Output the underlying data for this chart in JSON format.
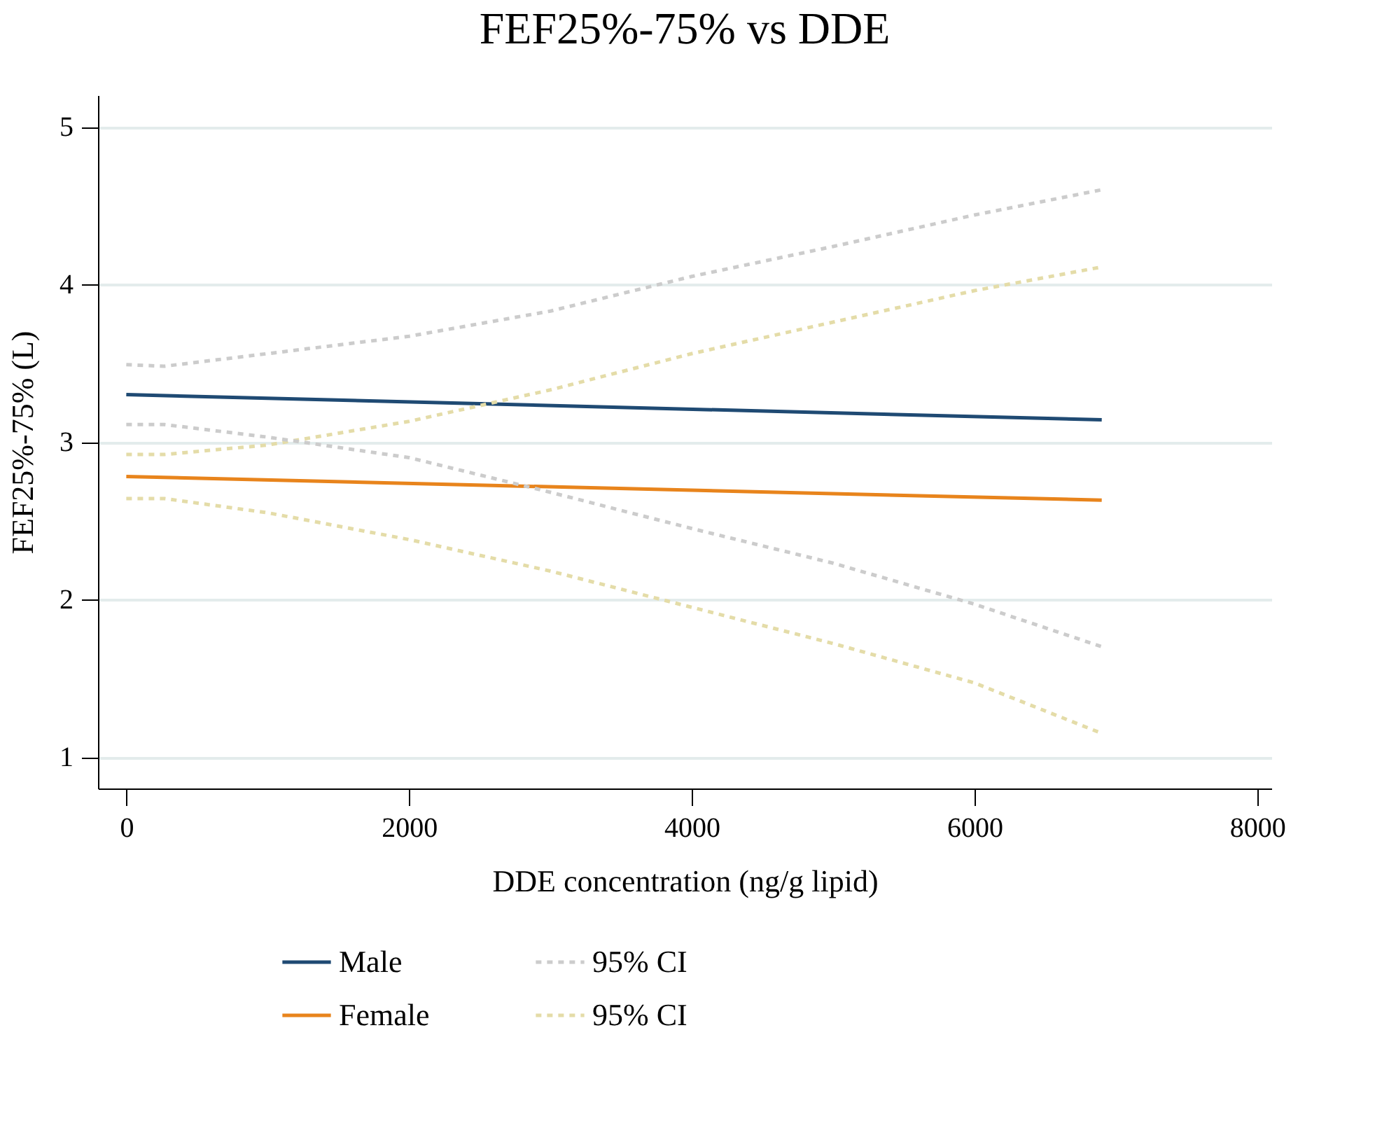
{
  "chart_data": {
    "type": "line",
    "title": "FEF25%-75% vs DDE",
    "xlabel": "DDE concentration (ng/g lipid)",
    "ylabel": "FEF25%-75% (L)",
    "xlim": [
      -200,
      8100
    ],
    "xticks": [
      0,
      2000,
      4000,
      6000,
      8000
    ],
    "ylim": [
      0.8,
      5.2
    ],
    "yticks": [
      1,
      2,
      3,
      4,
      5
    ],
    "grid": "y",
    "legend": "bottom",
    "marker": "none",
    "series": [
      {
        "name": "Male",
        "color": "#1f4a73",
        "line_style": "solid",
        "x": [
          0,
          6900
        ],
        "values": [
          3.3,
          3.14
        ]
      },
      {
        "name": "Female",
        "color": "#e8841c",
        "line_style": "solid",
        "x": [
          0,
          6900
        ],
        "values": [
          2.78,
          2.63
        ]
      },
      {
        "name": "95% CI",
        "color": "#cccccc",
        "line_style": "dashed",
        "x": [
          0,
          270,
          1000,
          2000,
          3000,
          4000,
          5000,
          6000,
          6900
        ],
        "values": [
          3.49,
          3.48,
          3.56,
          3.67,
          3.83,
          4.05,
          4.24,
          4.44,
          4.6
        ]
      },
      {
        "name": "95% CI",
        "color": "#e4dca8",
        "line_style": "dashed",
        "x": [
          0,
          270,
          1000,
          2000,
          3000,
          4000,
          5000,
          6000,
          6900
        ],
        "values": [
          2.92,
          2.92,
          2.98,
          3.13,
          3.33,
          3.56,
          3.76,
          3.96,
          4.11
        ]
      },
      {
        "color": "#cccccc",
        "line_style": "dashed",
        "x": [
          0,
          270,
          1000,
          2000,
          3000,
          4000,
          5000,
          6000,
          6900
        ],
        "values": [
          3.11,
          3.11,
          3.03,
          2.9,
          2.68,
          2.45,
          2.23,
          1.97,
          1.7
        ]
      },
      {
        "color": "#e4dca8",
        "line_style": "dashed",
        "x": [
          0,
          270,
          1000,
          2000,
          3000,
          4000,
          5000,
          6000,
          6900
        ],
        "values": [
          2.64,
          2.64,
          2.55,
          2.38,
          2.18,
          1.95,
          1.72,
          1.47,
          1.15
        ]
      }
    ]
  }
}
